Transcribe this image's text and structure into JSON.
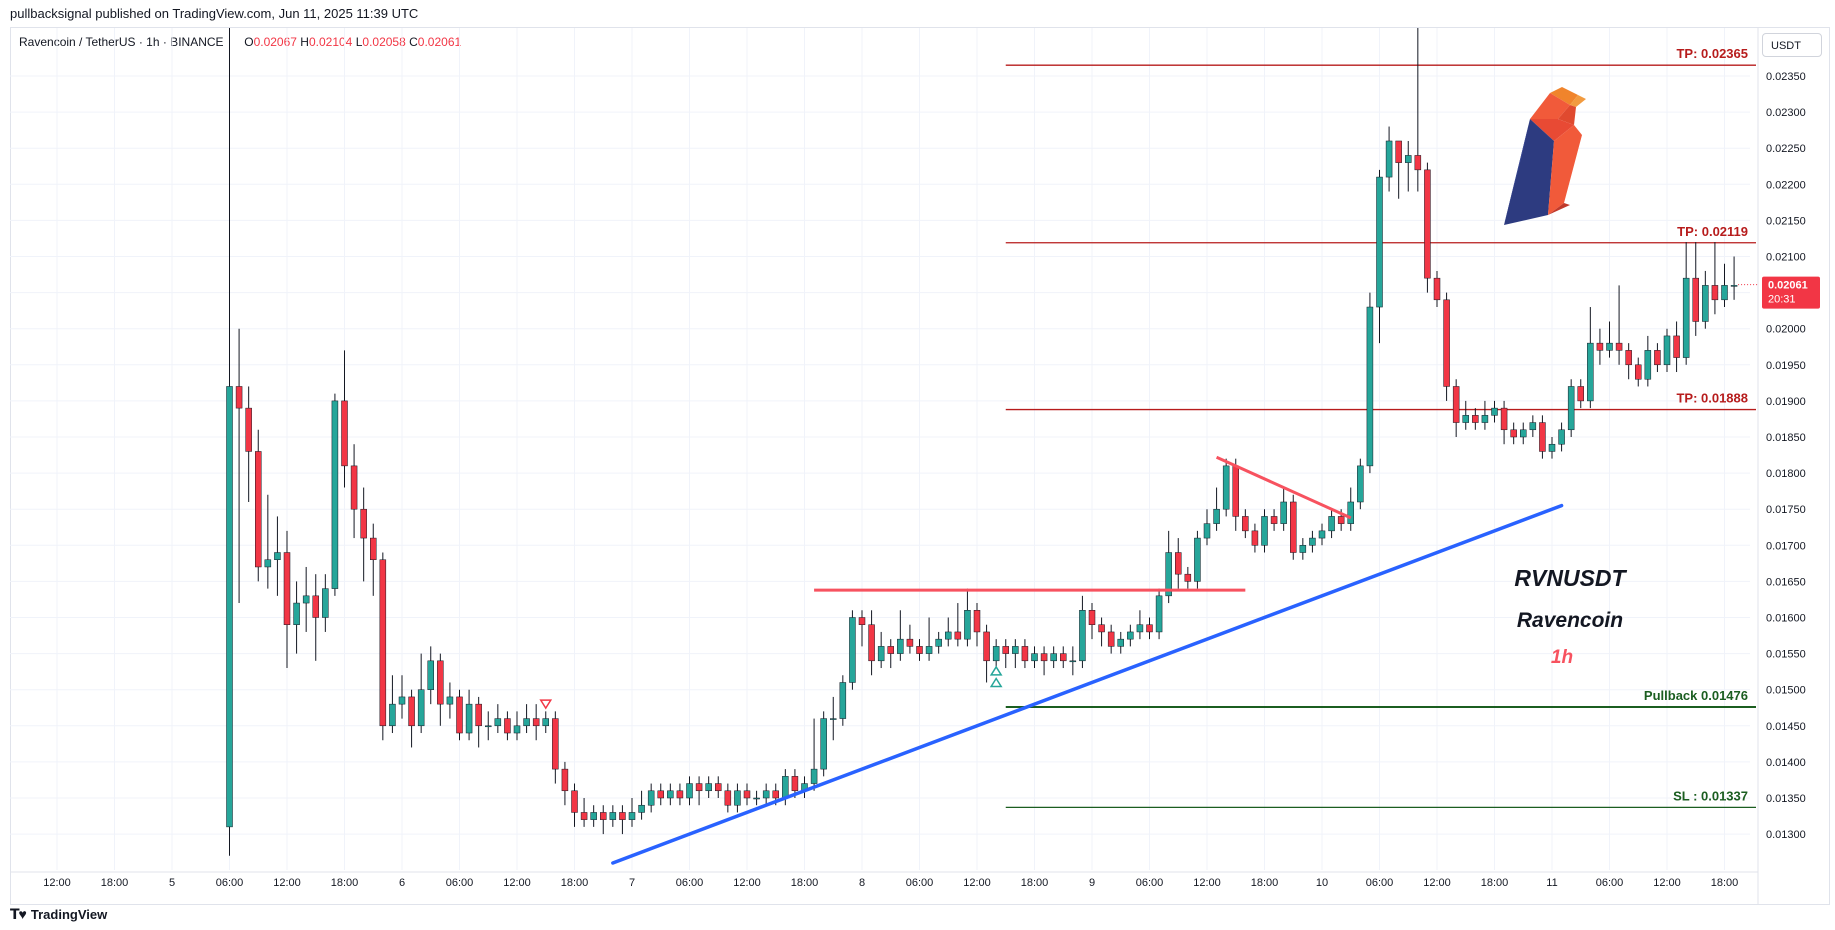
{
  "publisher": "pullbacksignal published on TradingView.com, Jun 11, 2025 11:39 UTC",
  "legend": {
    "symbol": "Ravencoin / TetherUS · 1h · BINANCE",
    "open_key": "O",
    "open": "0.02067",
    "high_key": "H",
    "high": "0.02104",
    "low_key": "L",
    "low": "0.02058",
    "close_key": "C",
    "close": "0.02061"
  },
  "currency_button": "USDT",
  "price_tag": {
    "price": "0.02061",
    "countdown": "20:31",
    "value": 0.02061
  },
  "brand": "TradingView",
  "annotations": {
    "title": "RVNUSDT",
    "subtitle": "Ravencoin",
    "timeframe": "1h"
  },
  "colors": {
    "up": "#26a69a",
    "down": "#f23645",
    "tp": "#b71c1c",
    "sl": "#1b5e20",
    "trend": "#2962ff",
    "resistance": "#f7525f"
  },
  "chart_data": {
    "type": "candlestick",
    "y_axis": {
      "min": 0.0127,
      "max": 0.02385,
      "ticks": [
        "0.02350",
        "0.02300",
        "0.02250",
        "0.02200",
        "0.02150",
        "0.02100",
        "0.02050",
        "0.02000",
        "0.01950",
        "0.01900",
        "0.01850",
        "0.01800",
        "0.01750",
        "0.01700",
        "0.01650",
        "0.01600",
        "0.01550",
        "0.01500",
        "0.01450",
        "0.01400",
        "0.01350",
        "0.01300"
      ]
    },
    "x_axis": {
      "start": "Jun 4 09:00",
      "end": "Jun 11 21:00",
      "bar_interval": "1h",
      "ticks": [
        {
          "t": "Jun 4 12:00",
          "label": "12:00"
        },
        {
          "t": "Jun 4 18:00",
          "label": "18:00"
        },
        {
          "t": "Jun 5 00:00",
          "label": "5"
        },
        {
          "t": "Jun 5 06:00",
          "label": "06:00"
        },
        {
          "t": "Jun 5 12:00",
          "label": "12:00"
        },
        {
          "t": "Jun 5 18:00",
          "label": "18:00"
        },
        {
          "t": "Jun 6 00:00",
          "label": "6"
        },
        {
          "t": "Jun 6 06:00",
          "label": "06:00"
        },
        {
          "t": "Jun 6 12:00",
          "label": "12:00"
        },
        {
          "t": "Jun 6 18:00",
          "label": "18:00"
        },
        {
          "t": "Jun 7 00:00",
          "label": "7"
        },
        {
          "t": "Jun 7 06:00",
          "label": "06:00"
        },
        {
          "t": "Jun 7 12:00",
          "label": "12:00"
        },
        {
          "t": "Jun 7 18:00",
          "label": "18:00"
        },
        {
          "t": "Jun 8 00:00",
          "label": "8"
        },
        {
          "t": "Jun 8 06:00",
          "label": "06:00"
        },
        {
          "t": "Jun 8 12:00",
          "label": "12:00"
        },
        {
          "t": "Jun 8 18:00",
          "label": "18:00"
        },
        {
          "t": "Jun 9 00:00",
          "label": "9"
        },
        {
          "t": "Jun 9 06:00",
          "label": "06:00"
        },
        {
          "t": "Jun 9 12:00",
          "label": "12:00"
        },
        {
          "t": "Jun 9 18:00",
          "label": "18:00"
        },
        {
          "t": "Jun 10 00:00",
          "label": "10"
        },
        {
          "t": "Jun 10 06:00",
          "label": "06:00"
        },
        {
          "t": "Jun 10 12:00",
          "label": "12:00"
        },
        {
          "t": "Jun 10 18:00",
          "label": "18:00"
        },
        {
          "t": "Jun 11 00:00",
          "label": "11"
        },
        {
          "t": "Jun 11 06:00",
          "label": "06:00"
        },
        {
          "t": "Jun 11 12:00",
          "label": "12:00"
        },
        {
          "t": "Jun 11 18:00",
          "label": "18:00"
        }
      ]
    },
    "first_candle_time": "Jun 5 06:00",
    "candles": [
      [
        0.0131,
        0.0192,
        0.0127,
        0.0245
      ],
      [
        0.0192,
        0.0189,
        0.0162,
        0.02
      ],
      [
        0.0189,
        0.0183,
        0.0176,
        0.0192
      ],
      [
        0.0183,
        0.0167,
        0.0165,
        0.0186
      ],
      [
        0.0167,
        0.0168,
        0.0164,
        0.0177
      ],
      [
        0.0168,
        0.0169,
        0.0163,
        0.0174
      ],
      [
        0.0169,
        0.0159,
        0.0153,
        0.0172
      ],
      [
        0.0159,
        0.0162,
        0.0155,
        0.0165
      ],
      [
        0.0162,
        0.0163,
        0.0158,
        0.0167
      ],
      [
        0.0163,
        0.016,
        0.0154,
        0.0166
      ],
      [
        0.016,
        0.0164,
        0.0158,
        0.0166
      ],
      [
        0.0164,
        0.019,
        0.0163,
        0.0191
      ],
      [
        0.019,
        0.0181,
        0.0178,
        0.0197
      ],
      [
        0.0181,
        0.0175,
        0.0171,
        0.0184
      ],
      [
        0.0175,
        0.0171,
        0.0165,
        0.0178
      ],
      [
        0.0171,
        0.0168,
        0.0163,
        0.0173
      ],
      [
        0.0168,
        0.0145,
        0.0143,
        0.0169
      ],
      [
        0.0145,
        0.0148,
        0.0144,
        0.0152
      ],
      [
        0.0148,
        0.0149,
        0.0146,
        0.0152
      ],
      [
        0.0149,
        0.0145,
        0.0142,
        0.015
      ],
      [
        0.0145,
        0.015,
        0.0144,
        0.0155
      ],
      [
        0.015,
        0.0154,
        0.0148,
        0.0156
      ],
      [
        0.0154,
        0.0148,
        0.0145,
        0.0155
      ],
      [
        0.0148,
        0.0149,
        0.0146,
        0.0151
      ],
      [
        0.0149,
        0.0144,
        0.0143,
        0.015
      ],
      [
        0.0144,
        0.0148,
        0.0143,
        0.015
      ],
      [
        0.0148,
        0.0145,
        0.0142,
        0.0149
      ],
      [
        0.0145,
        0.0145,
        0.0143,
        0.0147
      ],
      [
        0.0145,
        0.0146,
        0.0144,
        0.0148
      ],
      [
        0.0146,
        0.0144,
        0.0143,
        0.0147
      ],
      [
        0.0144,
        0.0145,
        0.0143,
        0.0147
      ],
      [
        0.0145,
        0.0146,
        0.0144,
        0.0148
      ],
      [
        0.0146,
        0.0145,
        0.0143,
        0.0148
      ],
      [
        0.0145,
        0.0146,
        0.0144,
        0.0147
      ],
      [
        0.0146,
        0.0139,
        0.0137,
        0.0147
      ],
      [
        0.0139,
        0.0136,
        0.0134,
        0.014
      ],
      [
        0.0136,
        0.0133,
        0.0131,
        0.0137
      ],
      [
        0.0133,
        0.0132,
        0.0131,
        0.0135
      ],
      [
        0.0132,
        0.0133,
        0.0131,
        0.0134
      ],
      [
        0.0133,
        0.0132,
        0.013,
        0.0134
      ],
      [
        0.0132,
        0.0133,
        0.0131,
        0.0134
      ],
      [
        0.0133,
        0.0132,
        0.013,
        0.0134
      ],
      [
        0.0132,
        0.0133,
        0.0131,
        0.0135
      ],
      [
        0.0133,
        0.0134,
        0.0132,
        0.0136
      ],
      [
        0.0134,
        0.0136,
        0.0133,
        0.0137
      ],
      [
        0.0136,
        0.0135,
        0.0134,
        0.0137
      ],
      [
        0.0135,
        0.0136,
        0.0134,
        0.0137
      ],
      [
        0.0136,
        0.0135,
        0.0134,
        0.0137
      ],
      [
        0.0135,
        0.0137,
        0.0134,
        0.0138
      ],
      [
        0.0137,
        0.0136,
        0.0134,
        0.0138
      ],
      [
        0.0136,
        0.0137,
        0.0135,
        0.0138
      ],
      [
        0.0137,
        0.0136,
        0.0135,
        0.0138
      ],
      [
        0.0136,
        0.0134,
        0.0133,
        0.0137
      ],
      [
        0.0134,
        0.0136,
        0.0133,
        0.0137
      ],
      [
        0.0136,
        0.0135,
        0.0134,
        0.0137
      ],
      [
        0.0135,
        0.0135,
        0.0134,
        0.0136
      ],
      [
        0.0135,
        0.0136,
        0.0134,
        0.0137
      ],
      [
        0.0136,
        0.0135,
        0.0134,
        0.0137
      ],
      [
        0.0135,
        0.0138,
        0.0134,
        0.0139
      ],
      [
        0.0138,
        0.0136,
        0.0135,
        0.0139
      ],
      [
        0.0136,
        0.0137,
        0.0135,
        0.0138
      ],
      [
        0.0137,
        0.0139,
        0.0136,
        0.0146
      ],
      [
        0.0139,
        0.0146,
        0.0138,
        0.0147
      ],
      [
        0.0146,
        0.0146,
        0.0143,
        0.0149
      ],
      [
        0.0146,
        0.0151,
        0.0145,
        0.0152
      ],
      [
        0.0151,
        0.016,
        0.015,
        0.0161
      ],
      [
        0.016,
        0.0159,
        0.0156,
        0.0161
      ],
      [
        0.0159,
        0.0154,
        0.0152,
        0.0161
      ],
      [
        0.0154,
        0.0156,
        0.0153,
        0.0158
      ],
      [
        0.0156,
        0.0155,
        0.0153,
        0.0157
      ],
      [
        0.0155,
        0.0157,
        0.0154,
        0.0161
      ],
      [
        0.0157,
        0.0156,
        0.0155,
        0.0159
      ],
      [
        0.0156,
        0.0155,
        0.0154,
        0.0157
      ],
      [
        0.0155,
        0.0156,
        0.0154,
        0.016
      ],
      [
        0.0156,
        0.0157,
        0.0155,
        0.0158
      ],
      [
        0.0157,
        0.0158,
        0.0156,
        0.016
      ],
      [
        0.0158,
        0.0157,
        0.0156,
        0.0162
      ],
      [
        0.0157,
        0.0161,
        0.0156,
        0.0164
      ],
      [
        0.0161,
        0.0158,
        0.0156,
        0.0162
      ],
      [
        0.0158,
        0.0154,
        0.0151,
        0.0159
      ],
      [
        0.0154,
        0.0156,
        0.0153,
        0.0157
      ],
      [
        0.0156,
        0.0155,
        0.0153,
        0.0157
      ],
      [
        0.0155,
        0.0156,
        0.0153,
        0.0157
      ],
      [
        0.0156,
        0.0154,
        0.0153,
        0.0157
      ],
      [
        0.0154,
        0.0155,
        0.0153,
        0.0156
      ],
      [
        0.0155,
        0.0154,
        0.0152,
        0.0156
      ],
      [
        0.0154,
        0.0155,
        0.0153,
        0.0156
      ],
      [
        0.0155,
        0.0154,
        0.0153,
        0.0156
      ],
      [
        0.0154,
        0.0154,
        0.0152,
        0.0156
      ],
      [
        0.0154,
        0.0161,
        0.0153,
        0.0163
      ],
      [
        0.0161,
        0.0159,
        0.0157,
        0.0162
      ],
      [
        0.0159,
        0.0158,
        0.0156,
        0.016
      ],
      [
        0.0158,
        0.0156,
        0.0155,
        0.0159
      ],
      [
        0.0156,
        0.0157,
        0.0155,
        0.0158
      ],
      [
        0.0157,
        0.0158,
        0.0156,
        0.0159
      ],
      [
        0.0158,
        0.0159,
        0.0157,
        0.0161
      ],
      [
        0.0159,
        0.0158,
        0.0157,
        0.016
      ],
      [
        0.0158,
        0.0163,
        0.0157,
        0.0164
      ],
      [
        0.0163,
        0.0169,
        0.0162,
        0.0172
      ],
      [
        0.0169,
        0.0166,
        0.0164,
        0.0171
      ],
      [
        0.0166,
        0.0165,
        0.0164,
        0.0167
      ],
      [
        0.0165,
        0.0171,
        0.0164,
        0.0172
      ],
      [
        0.0171,
        0.0173,
        0.017,
        0.0175
      ],
      [
        0.0173,
        0.0175,
        0.0172,
        0.0178
      ],
      [
        0.0175,
        0.0181,
        0.0174,
        0.0182
      ],
      [
        0.0181,
        0.0174,
        0.0172,
        0.0182
      ],
      [
        0.0174,
        0.0172,
        0.0171,
        0.0175
      ],
      [
        0.0172,
        0.017,
        0.0169,
        0.0173
      ],
      [
        0.017,
        0.0174,
        0.0169,
        0.0175
      ],
      [
        0.0174,
        0.0173,
        0.0172,
        0.0175
      ],
      [
        0.0173,
        0.0176,
        0.0172,
        0.0178
      ],
      [
        0.0176,
        0.0169,
        0.0168,
        0.0177
      ],
      [
        0.0169,
        0.017,
        0.0168,
        0.0171
      ],
      [
        0.017,
        0.0171,
        0.0169,
        0.0172
      ],
      [
        0.0171,
        0.0172,
        0.017,
        0.0173
      ],
      [
        0.0172,
        0.0174,
        0.0171,
        0.0175
      ],
      [
        0.0174,
        0.0173,
        0.0172,
        0.0175
      ],
      [
        0.0173,
        0.0176,
        0.0172,
        0.0178
      ],
      [
        0.0176,
        0.0181,
        0.0175,
        0.0182
      ],
      [
        0.0181,
        0.0203,
        0.018,
        0.0205
      ],
      [
        0.0203,
        0.0221,
        0.0198,
        0.0222
      ],
      [
        0.0221,
        0.0226,
        0.0219,
        0.0228
      ],
      [
        0.0226,
        0.0223,
        0.0218,
        0.0226
      ],
      [
        0.0223,
        0.0224,
        0.0219,
        0.0226
      ],
      [
        0.0224,
        0.0222,
        0.0219,
        0.0245
      ],
      [
        0.0222,
        0.0207,
        0.0205,
        0.0223
      ],
      [
        0.0207,
        0.0204,
        0.0203,
        0.0208
      ],
      [
        0.0204,
        0.0192,
        0.019,
        0.0205
      ],
      [
        0.0192,
        0.0187,
        0.0185,
        0.0193
      ],
      [
        0.0187,
        0.0188,
        0.0186,
        0.019
      ],
      [
        0.0188,
        0.0187,
        0.0186,
        0.0189
      ],
      [
        0.0187,
        0.0188,
        0.0186,
        0.019
      ],
      [
        0.0188,
        0.0189,
        0.0187,
        0.019
      ],
      [
        0.0189,
        0.0186,
        0.0184,
        0.019
      ],
      [
        0.0186,
        0.0185,
        0.0184,
        0.0187
      ],
      [
        0.0185,
        0.0186,
        0.0184,
        0.0187
      ],
      [
        0.0186,
        0.0187,
        0.0185,
        0.0188
      ],
      [
        0.0187,
        0.0183,
        0.0182,
        0.0188
      ],
      [
        0.0183,
        0.0184,
        0.0182,
        0.0185
      ],
      [
        0.0184,
        0.0186,
        0.0183,
        0.0187
      ],
      [
        0.0186,
        0.0192,
        0.0185,
        0.0193
      ],
      [
        0.0192,
        0.019,
        0.0189,
        0.0193
      ],
      [
        0.019,
        0.0198,
        0.0189,
        0.0203
      ],
      [
        0.0198,
        0.0197,
        0.0195,
        0.02
      ],
      [
        0.0197,
        0.0198,
        0.0196,
        0.0201
      ],
      [
        0.0198,
        0.0197,
        0.0195,
        0.0206
      ],
      [
        0.0197,
        0.0195,
        0.0193,
        0.0198
      ],
      [
        0.0195,
        0.0193,
        0.0192,
        0.0196
      ],
      [
        0.0193,
        0.0197,
        0.0192,
        0.0199
      ],
      [
        0.0197,
        0.0195,
        0.0194,
        0.0198
      ],
      [
        0.0195,
        0.0199,
        0.0194,
        0.02
      ],
      [
        0.0199,
        0.0196,
        0.0194,
        0.0201
      ],
      [
        0.0196,
        0.0207,
        0.0195,
        0.0212
      ],
      [
        0.0207,
        0.0201,
        0.0199,
        0.0212
      ],
      [
        0.0201,
        0.0206,
        0.02,
        0.0208
      ],
      [
        0.0206,
        0.0204,
        0.0202,
        0.0212
      ],
      [
        0.0204,
        0.0206,
        0.0203,
        0.0209
      ],
      [
        0.0206,
        0.0206,
        0.0204,
        0.021
      ]
    ],
    "levels": [
      {
        "label": "TP: 0.02365",
        "value": 0.02365,
        "kind": "tp"
      },
      {
        "label": "TP: 0.02119",
        "value": 0.02119,
        "kind": "tp"
      },
      {
        "label": "TP: 0.01888",
        "value": 0.01888,
        "kind": "tp"
      },
      {
        "label": "Pullback 0.01476",
        "value": 0.01476,
        "kind": "pullback"
      },
      {
        "label": "SL : 0.01337",
        "value": 0.01337,
        "kind": "sl"
      }
    ],
    "levels_start_time": "Jun 8 15:00",
    "trendline": {
      "from": {
        "t": "Jun 6 22:00",
        "v": 0.0126
      },
      "to": {
        "t": "Jun 11 01:00",
        "v": 0.01755
      }
    },
    "resistance_line": {
      "from": {
        "t": "Jun 7 19:00",
        "v": 0.01638
      },
      "to": {
        "t": "Jun 9 16:00",
        "v": 0.01638
      }
    },
    "wedge_line": {
      "from": {
        "t": "Jun 9 13:00",
        "v": 0.01822
      },
      "to": {
        "t": "Jun 10 03:00",
        "v": 0.01738
      }
    },
    "signals": [
      {
        "t": "Jun 6 15:00",
        "v": 0.0148,
        "kind": "sell"
      },
      {
        "t": "Jun 8 14:00",
        "v": 0.01526,
        "kind": "buy"
      },
      {
        "t": "Jun 8 14:00",
        "v": 0.0151,
        "kind": "buy"
      }
    ]
  }
}
